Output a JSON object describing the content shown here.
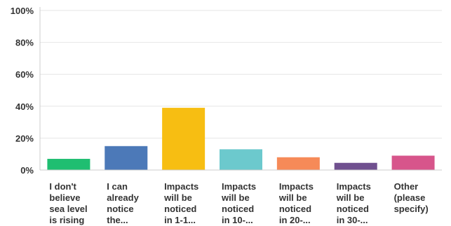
{
  "chart_data": {
    "type": "bar",
    "categories": [
      [
        "I don't",
        "believe",
        "sea level",
        "is rising"
      ],
      [
        "I can",
        "already",
        "notice",
        "the..."
      ],
      [
        "Impacts",
        "will be",
        "noticed",
        "in 1-1..."
      ],
      [
        "Impacts",
        "will be",
        "noticed",
        "in 10-..."
      ],
      [
        "Impacts",
        "will be",
        "noticed",
        "in 20-..."
      ],
      [
        "Impacts",
        "will be",
        "noticed",
        "in 30-..."
      ],
      [
        "Other",
        "(please",
        "specify)"
      ]
    ],
    "values": [
      7,
      15,
      39,
      13,
      8,
      4.5,
      9
    ],
    "colors": [
      "#1fbe71",
      "#4c79b8",
      "#f7be12",
      "#6cc9cd",
      "#f68a58",
      "#70508f",
      "#d7558b"
    ],
    "ylim": [
      0,
      100
    ],
    "yticks": [
      0,
      20,
      40,
      60,
      80,
      100
    ],
    "ytick_labels": [
      "0%",
      "20%",
      "40%",
      "60%",
      "80%",
      "100%"
    ],
    "grid": true,
    "title": "",
    "xlabel": "",
    "ylabel": ""
  }
}
